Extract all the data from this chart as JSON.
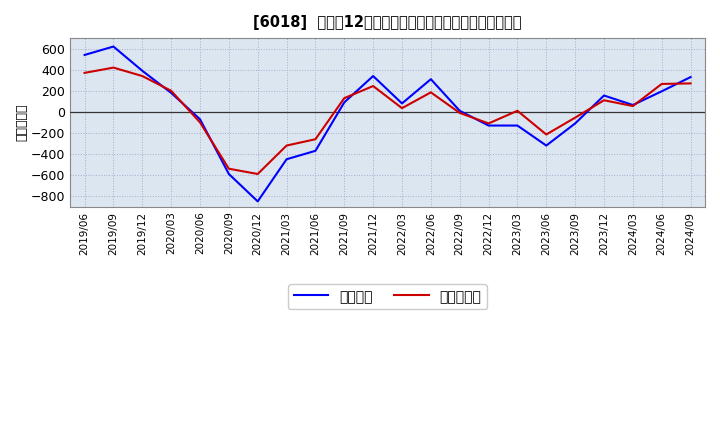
{
  "title": "[6018]  利益の12か月移動合計の対前年同期増減額の推移",
  "ylabel": "（百万円）",
  "background_color": "#ffffff",
  "plot_bg_color": "#dce6f1",
  "grid_color": "#aaaacc",
  "ylim": [
    -900,
    700
  ],
  "yticks": [
    -800,
    -600,
    -400,
    -200,
    0,
    200,
    400,
    600
  ],
  "legend_labels": [
    "経常利益",
    "当期純利益"
  ],
  "line_colors": [
    "#0000ff",
    "#cc0000"
  ],
  "x_labels": [
    "2019/06",
    "2019/09",
    "2019/12",
    "2020/03",
    "2020/06",
    "2020/09",
    "2020/12",
    "2021/03",
    "2021/06",
    "2021/09",
    "2021/12",
    "2022/03",
    "2022/06",
    "2022/09",
    "2022/12",
    "2023/03",
    "2023/06",
    "2023/09",
    "2023/12",
    "2024/03",
    "2024/06",
    "2024/09"
  ],
  "keijo_rieki": [
    540,
    620,
    390,
    180,
    -70,
    -590,
    -850,
    -450,
    -370,
    90,
    340,
    80,
    310,
    10,
    -130,
    -130,
    -320,
    -110,
    155,
    65,
    195,
    330
  ],
  "touki_jun_rieki": [
    370,
    420,
    340,
    200,
    -100,
    -540,
    -590,
    -320,
    -260,
    130,
    245,
    35,
    185,
    -10,
    -110,
    10,
    -215,
    -55,
    110,
    55,
    265,
    270
  ]
}
